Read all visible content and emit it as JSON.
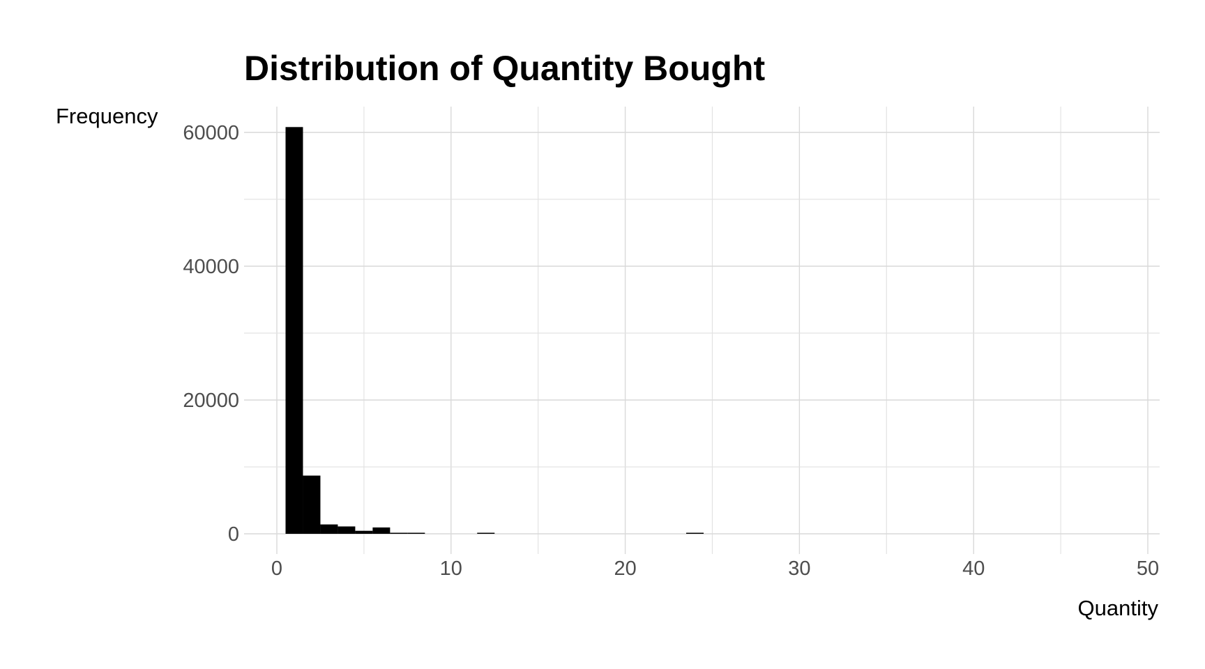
{
  "chart_data": {
    "type": "bar",
    "subtype": "histogram",
    "title": "Distribution of Quantity Bought",
    "xlabel": "Quantity",
    "ylabel": "Frequency",
    "xlim": [
      -0.5,
      50.5
    ],
    "ylim": [
      -1000,
      64000
    ],
    "x_ticks": [
      0,
      10,
      20,
      30,
      40,
      50
    ],
    "y_ticks": [
      0,
      20000,
      40000,
      60000
    ],
    "x_tick_labels": [
      "0",
      "10",
      "20",
      "30",
      "40",
      "50"
    ],
    "y_tick_labels": [
      "0",
      "20000",
      "40000",
      "60000"
    ],
    "grid": true,
    "legend": "none",
    "bar_color": "#000000",
    "bin_width": 1,
    "bins": [
      {
        "x": 1,
        "count": 60800
      },
      {
        "x": 2,
        "count": 8700
      },
      {
        "x": 3,
        "count": 1400
      },
      {
        "x": 4,
        "count": 1100
      },
      {
        "x": 5,
        "count": 450
      },
      {
        "x": 6,
        "count": 950
      },
      {
        "x": 7,
        "count": 150
      },
      {
        "x": 8,
        "count": 120
      },
      {
        "x": 12,
        "count": 150
      },
      {
        "x": 24,
        "count": 150
      }
    ]
  }
}
